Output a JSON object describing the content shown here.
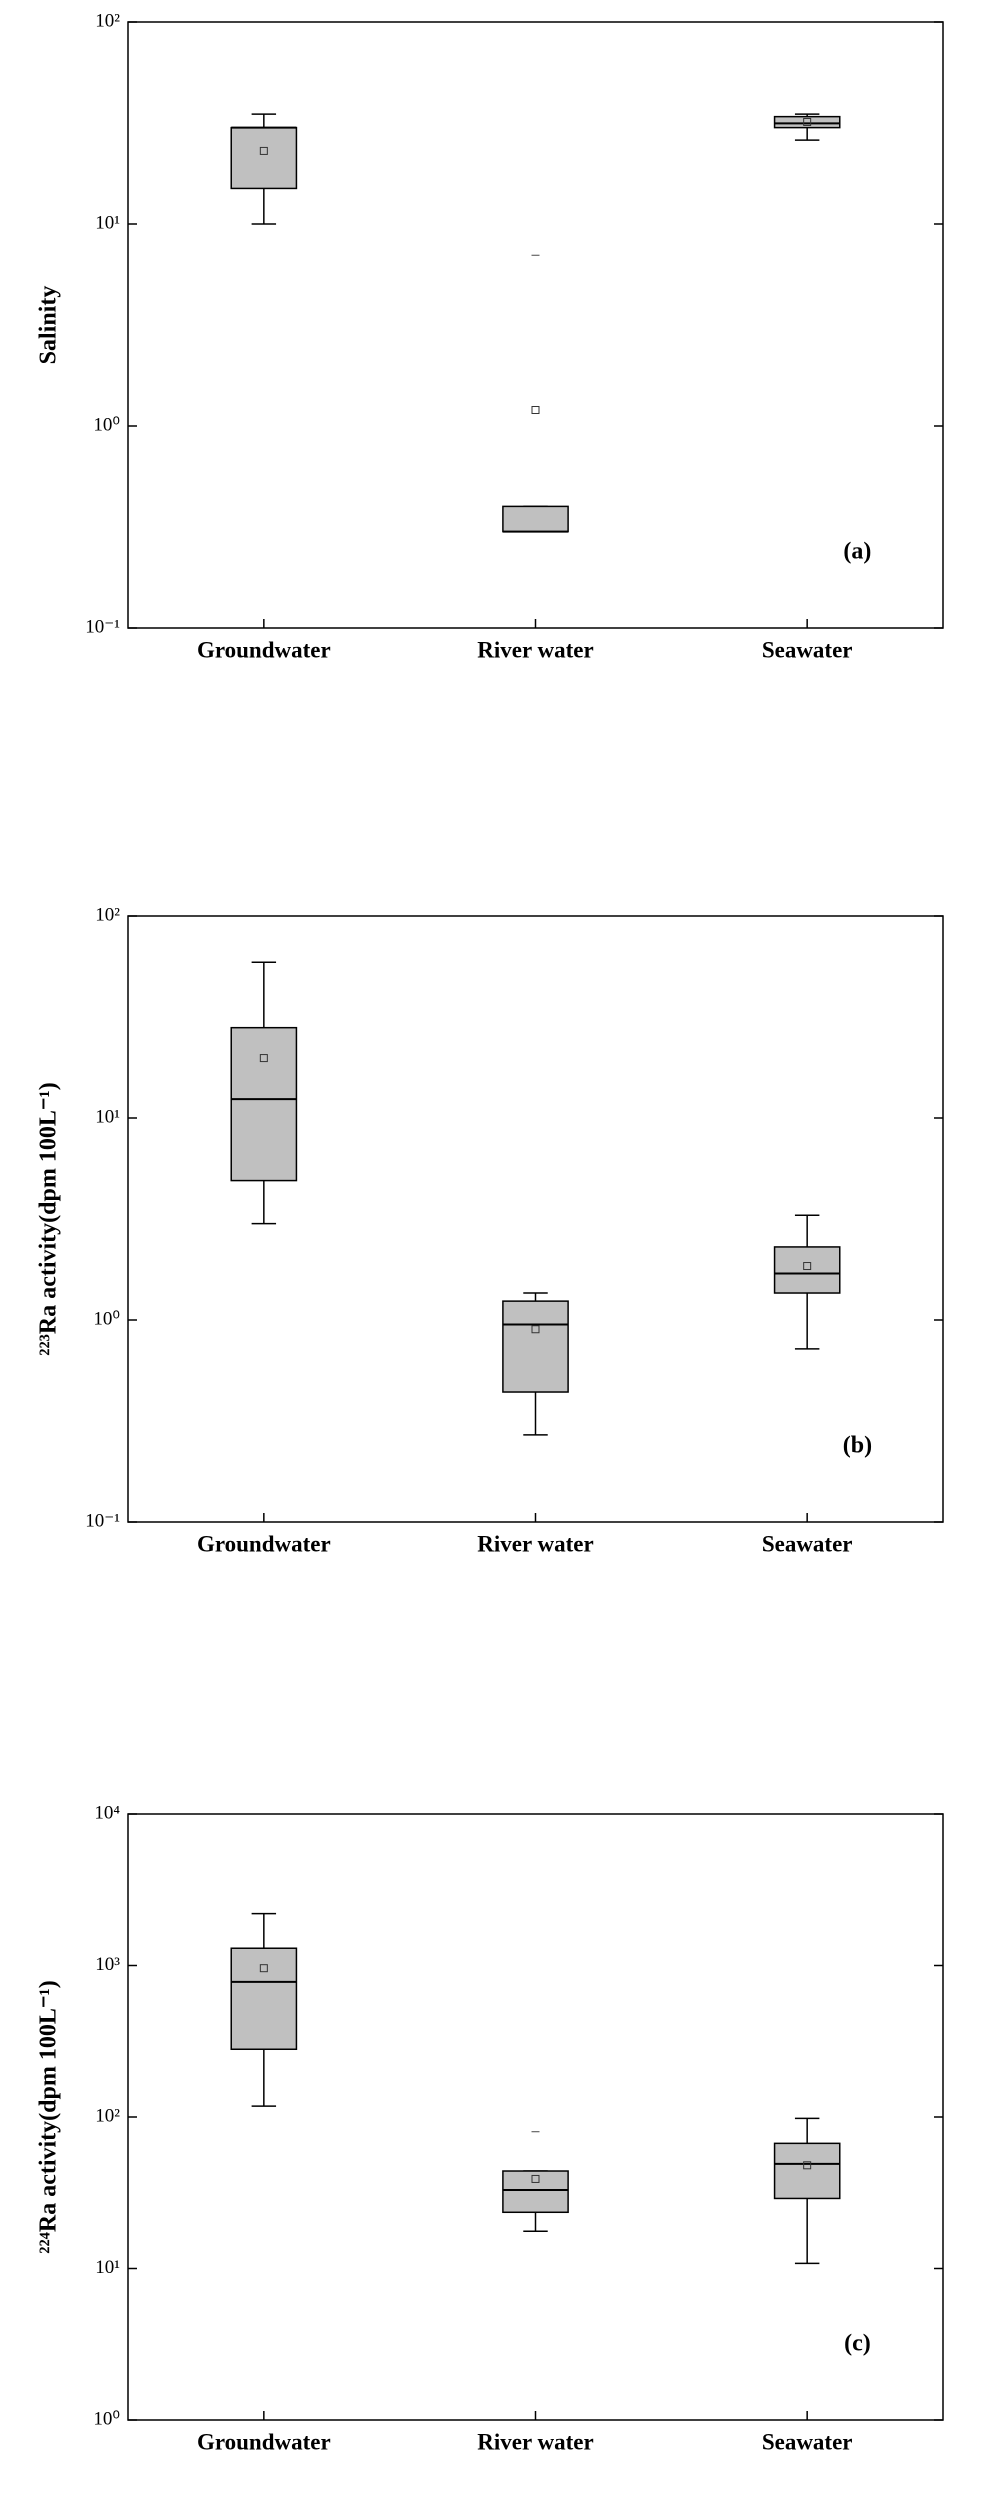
{
  "chart_data": [
    {
      "type": "box",
      "ylabel": "Salinity",
      "annotation": "(a)",
      "log_scale": true,
      "color": "#c0c0c0",
      "categories": [
        "Groundwater",
        "River water",
        "Seawater"
      ],
      "boxes": [
        {
          "min": 10,
          "q1": 15,
          "median": 30,
          "q3": 30,
          "max": 35,
          "mean": 23,
          "outliers": []
        },
        {
          "min": 0.3,
          "q1": 0.3,
          "median": 0.3,
          "q3": 0.4,
          "max": 0.4,
          "mean": 1.2,
          "outliers": [
            7
          ]
        },
        {
          "min": 26,
          "q1": 30,
          "median": 31.5,
          "q3": 34,
          "max": 35,
          "mean": 32,
          "outliers": []
        }
      ],
      "ylim": [
        0.1,
        100
      ],
      "yticks": [
        {
          "value": 0.1,
          "label": "10⁻¹"
        },
        {
          "value": 1,
          "label": "10⁰"
        },
        {
          "value": 10,
          "label": "10¹"
        },
        {
          "value": 100,
          "label": "10²"
        }
      ]
    },
    {
      "type": "box",
      "ylabel": "²²³Ra activity(dpm 100L⁻¹)",
      "annotation": "(b)",
      "log_scale": true,
      "color": "#c0c0c0",
      "categories": [
        "Groundwater",
        "River water",
        "Seawater"
      ],
      "boxes": [
        {
          "min": 3.0,
          "q1": 4.9,
          "median": 12.4,
          "q3": 28,
          "max": 59,
          "mean": 19.8,
          "outliers": []
        },
        {
          "min": 0.27,
          "q1": 0.44,
          "median": 0.95,
          "q3": 1.24,
          "max": 1.36,
          "mean": 0.9,
          "outliers": []
        },
        {
          "min": 0.72,
          "q1": 1.36,
          "median": 1.7,
          "q3": 2.3,
          "max": 3.3,
          "mean": 1.85,
          "outliers": []
        }
      ],
      "ylim": [
        0.1,
        100
      ],
      "yticks": [
        {
          "value": 0.1,
          "label": "10⁻¹"
        },
        {
          "value": 1,
          "label": "10⁰"
        },
        {
          "value": 10,
          "label": "10¹"
        },
        {
          "value": 100,
          "label": "10²"
        }
      ]
    },
    {
      "type": "box",
      "ylabel": "²²⁴Ra activity(dpm 100L⁻¹)",
      "annotation": "(c)",
      "log_scale": true,
      "color": "#c0c0c0",
      "categories": [
        "Groundwater",
        "River water",
        "Seawater"
      ],
      "boxes": [
        {
          "min": 118,
          "q1": 280,
          "median": 780,
          "q3": 1300,
          "max": 2200,
          "mean": 960,
          "outliers": []
        },
        {
          "min": 17.6,
          "q1": 23.5,
          "median": 33,
          "q3": 44,
          "max": 44,
          "mean": 39,
          "outliers": [
            80
          ]
        },
        {
          "min": 10.8,
          "q1": 29,
          "median": 49,
          "q3": 67,
          "max": 98,
          "mean": 48,
          "outliers": []
        }
      ],
      "ylim": [
        1,
        10000
      ],
      "yticks": [
        {
          "value": 1,
          "label": "10⁰"
        },
        {
          "value": 10,
          "label": "10¹"
        },
        {
          "value": 100,
          "label": "10²"
        },
        {
          "value": 1000,
          "label": "10³"
        },
        {
          "value": 10000,
          "label": "10⁴"
        }
      ]
    }
  ]
}
